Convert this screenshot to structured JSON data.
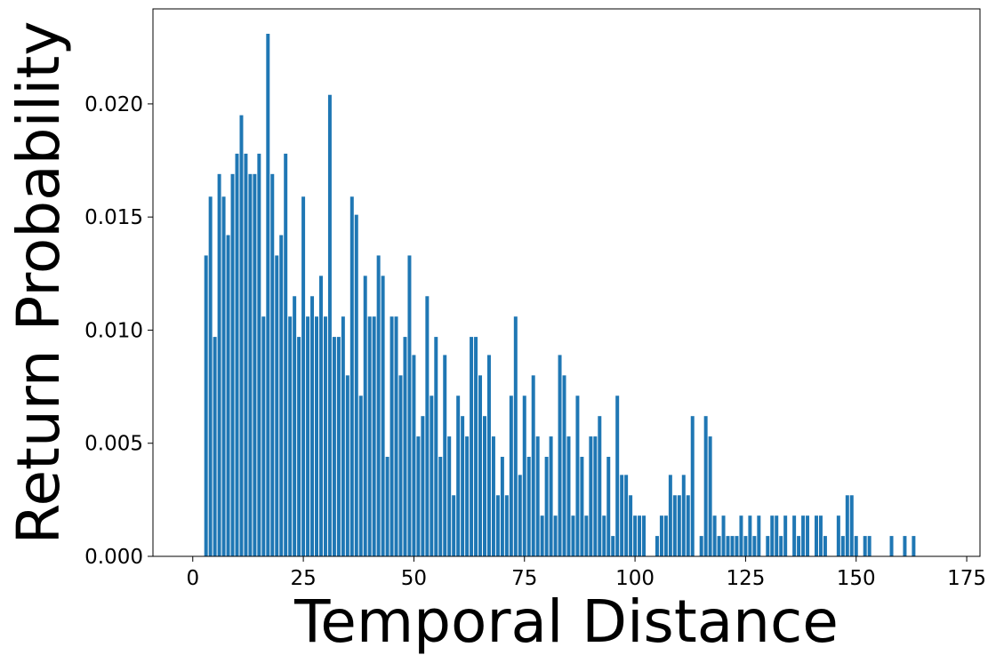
{
  "chart_data": {
    "type": "bar",
    "xlabel": "Temporal Distance",
    "ylabel": "Return Probability",
    "color": "#1f77b4",
    "x": [
      3,
      4,
      5,
      6,
      7,
      8,
      9,
      10,
      11,
      12,
      13,
      14,
      15,
      16,
      17,
      18,
      19,
      20,
      21,
      22,
      23,
      24,
      25,
      26,
      27,
      28,
      29,
      30,
      31,
      32,
      33,
      34,
      35,
      36,
      37,
      38,
      39,
      40,
      41,
      42,
      43,
      44,
      45,
      46,
      47,
      48,
      49,
      50,
      51,
      52,
      53,
      54,
      55,
      56,
      57,
      58,
      59,
      60,
      61,
      62,
      63,
      64,
      65,
      66,
      67,
      68,
      69,
      70,
      71,
      72,
      73,
      74,
      75,
      76,
      77,
      78,
      79,
      80,
      81,
      82,
      83,
      84,
      85,
      86,
      87,
      88,
      89,
      90,
      91,
      92,
      93,
      94,
      95,
      96,
      97,
      98,
      99,
      100,
      101,
      102,
      105,
      106,
      107,
      108,
      109,
      110,
      111,
      112,
      113,
      115,
      116,
      117,
      118,
      119,
      120,
      121,
      122,
      123,
      124,
      125,
      126,
      127,
      128,
      130,
      131,
      132,
      133,
      134,
      136,
      137,
      138,
      139,
      141,
      142,
      143,
      146,
      147,
      148,
      149,
      150,
      152,
      153,
      158,
      161,
      163
    ],
    "values": [
      0.0133,
      0.0159,
      0.0097,
      0.0169,
      0.0159,
      0.0142,
      0.0169,
      0.0178,
      0.0195,
      0.0178,
      0.0169,
      0.0169,
      0.0178,
      0.0106,
      0.0231,
      0.0169,
      0.0133,
      0.0142,
      0.0178,
      0.0106,
      0.0115,
      0.0097,
      0.0159,
      0.0106,
      0.0115,
      0.0106,
      0.0124,
      0.0106,
      0.0204,
      0.0097,
      0.0097,
      0.0106,
      0.008,
      0.0159,
      0.0151,
      0.0071,
      0.0124,
      0.0106,
      0.0106,
      0.0133,
      0.0124,
      0.0044,
      0.0106,
      0.0106,
      0.008,
      0.0097,
      0.0133,
      0.0089,
      0.0053,
      0.0062,
      0.0115,
      0.0071,
      0.0097,
      0.0044,
      0.0089,
      0.0053,
      0.0027,
      0.0071,
      0.0062,
      0.0053,
      0.0097,
      0.0097,
      0.008,
      0.0062,
      0.0089,
      0.0053,
      0.0027,
      0.0044,
      0.0027,
      0.0071,
      0.0106,
      0.0036,
      0.0071,
      0.0044,
      0.008,
      0.0053,
      0.0018,
      0.0044,
      0.0053,
      0.0018,
      0.0089,
      0.008,
      0.0053,
      0.0018,
      0.0071,
      0.0044,
      0.0018,
      0.0053,
      0.0053,
      0.0062,
      0.0018,
      0.0044,
      0.0009,
      0.0071,
      0.0036,
      0.0036,
      0.0027,
      0.0018,
      0.0018,
      0.0018,
      0.0009,
      0.0018,
      0.0018,
      0.0036,
      0.0027,
      0.0027,
      0.0036,
      0.0027,
      0.0062,
      0.0009,
      0.0062,
      0.0053,
      0.0018,
      0.0009,
      0.0018,
      0.0009,
      0.0009,
      0.0009,
      0.0018,
      0.0009,
      0.0018,
      0.0009,
      0.0018,
      0.0009,
      0.0018,
      0.0018,
      0.0009,
      0.0018,
      0.0018,
      0.0009,
      0.0018,
      0.0018,
      0.0018,
      0.0018,
      0.0009,
      0.0018,
      0.0009,
      0.0027,
      0.0027,
      0.0009,
      0.0009,
      0.0009,
      0.0009,
      0.0009,
      0.0009
    ],
    "xlim": [
      -9,
      178
    ],
    "ylim": [
      0,
      0.0242
    ],
    "xticks": [
      0,
      25,
      50,
      75,
      100,
      125,
      150,
      175
    ],
    "yticks": [
      {
        "value": 0,
        "label": "0.000"
      },
      {
        "value": 0.005,
        "label": "0.005"
      },
      {
        "value": 0.01,
        "label": "0.010"
      },
      {
        "value": 0.015,
        "label": "0.015"
      },
      {
        "value": 0.02,
        "label": "0.020"
      }
    ],
    "bar_width": 0.8
  }
}
